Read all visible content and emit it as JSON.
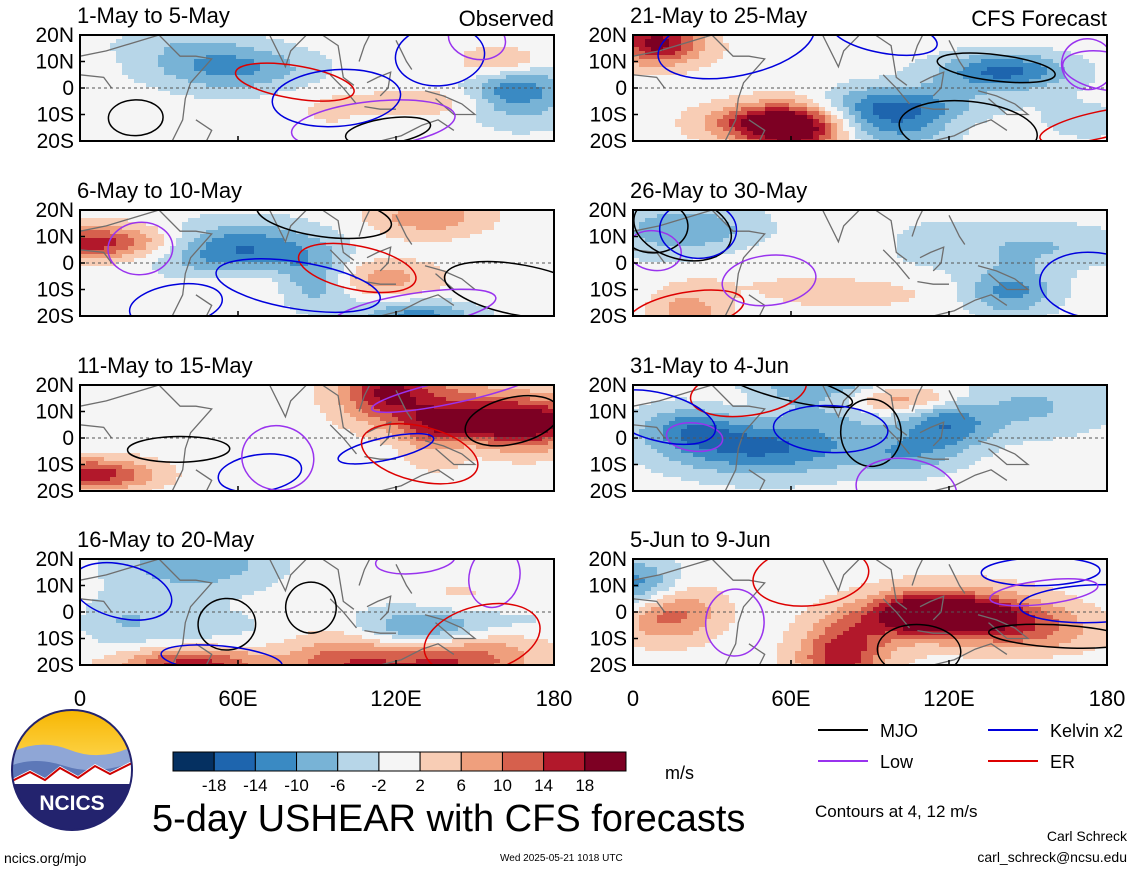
{
  "figure": {
    "title": "5-day USHEAR with CFS forecasts",
    "units": "m/s",
    "contour_note": "Contours at 4, 12 m/s",
    "author": "Carl Schreck",
    "email": "carl_schreck@ncsu.edu",
    "website": "ncics.org/mjo",
    "timestamp": "Wed 2025-05-21 1018 UTC",
    "logo_text": "NCICS"
  },
  "chart_data": {
    "type": "heatmap",
    "variable": "5-day USHEAR",
    "x_ticks": [
      "0",
      "60E",
      "120E",
      "180"
    ],
    "y_ticks": [
      "20N",
      "10N",
      "0",
      "10S",
      "20S"
    ],
    "xlim": [
      0,
      180
    ],
    "ylim": [
      -20,
      20
    ],
    "colorbar": {
      "levels": [
        "-18",
        "-14",
        "-10",
        "-6",
        "-2",
        "2",
        "6",
        "10",
        "14",
        "18"
      ],
      "colors": [
        "#053061",
        "#1e65ae",
        "#3a8ac3",
        "#78b3d6",
        "#b7d6e8",
        "#f5f5f5",
        "#f8cdb5",
        "#ef9f7d",
        "#d6604d",
        "#b2182b",
        "#7d0023"
      ]
    },
    "legend": [
      {
        "label": "MJO",
        "color": "#000000"
      },
      {
        "label": "Kelvin x2",
        "color": "#0000dd"
      },
      {
        "label": "Low",
        "color": "#9933ee"
      },
      {
        "label": "ER",
        "color": "#dd0000"
      }
    ],
    "panels": [
      {
        "title": "1-May to 5-May",
        "tag": "Observed",
        "col": 0,
        "row": 0
      },
      {
        "title": "6-May to 10-May",
        "tag": "",
        "col": 0,
        "row": 1
      },
      {
        "title": "11-May to 15-May",
        "tag": "",
        "col": 0,
        "row": 2
      },
      {
        "title": "16-May to 20-May",
        "tag": "",
        "col": 0,
        "row": 3
      },
      {
        "title": "21-May to 25-May",
        "tag": "CFS Forecast",
        "col": 1,
        "row": 0
      },
      {
        "title": "26-May to 30-May",
        "tag": "",
        "col": 1,
        "row": 1
      },
      {
        "title": "31-May to 4-Jun",
        "tag": "",
        "col": 1,
        "row": 2
      },
      {
        "title": "5-Jun to 9-Jun",
        "tag": "",
        "col": 1,
        "row": 3
      }
    ]
  }
}
